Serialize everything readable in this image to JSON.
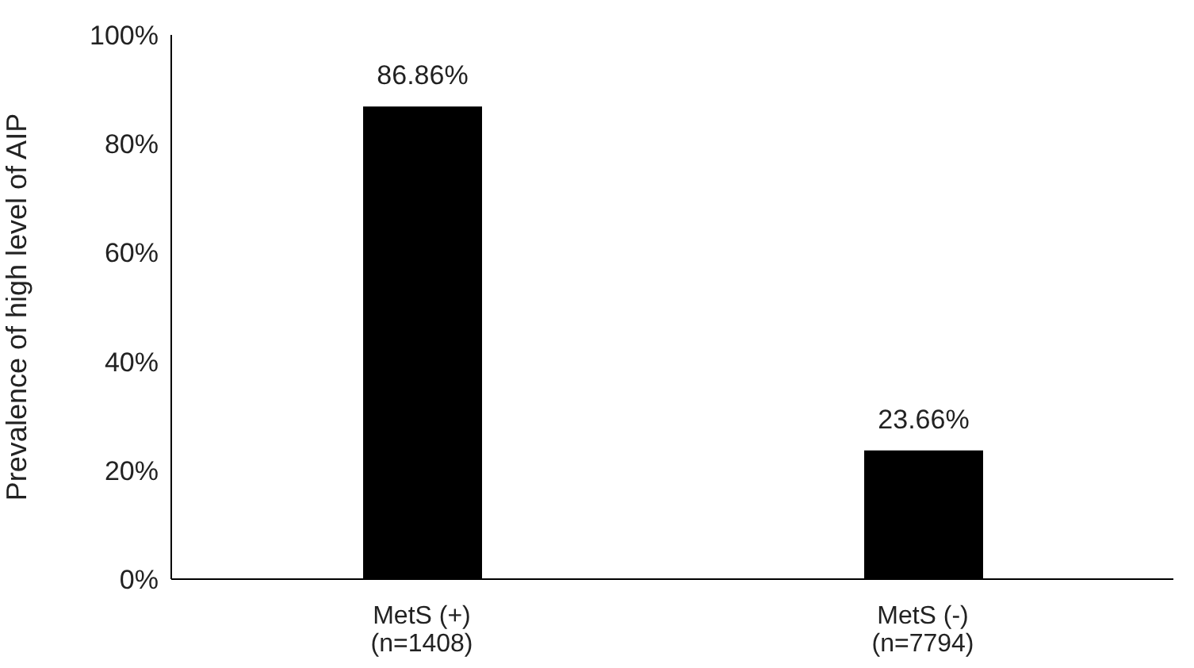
{
  "chart_data": {
    "type": "bar",
    "ylabel": "Prevalence of high level of AIP",
    "categories": [
      "MetS (+)\n(n=1408)",
      "MetS (-)\n(n=7794)"
    ],
    "values": [
      86.86,
      23.66
    ],
    "color": "#000000",
    "value_labels": [
      "86.86%",
      "23.66%"
    ],
    "ylim": [
      0,
      100
    ],
    "yticks": [
      {
        "value": 0,
        "label": "0%"
      },
      {
        "value": 20,
        "label": "20%"
      },
      {
        "value": 40,
        "label": "40%"
      },
      {
        "value": 60,
        "label": "60%"
      },
      {
        "value": 80,
        "label": "80%"
      },
      {
        "value": 100,
        "label": "100%"
      }
    ],
    "grid": false,
    "legend": false
  }
}
